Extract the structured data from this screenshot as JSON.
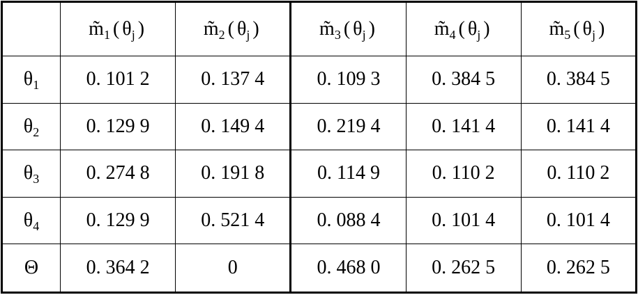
{
  "table": {
    "header": [
      {
        "symbol": "m̃",
        "sub": "1",
        "open": "(",
        "arg": "θ",
        "arg_sub": "j",
        "close": ")"
      },
      {
        "symbol": "m̃",
        "sub": "2",
        "open": "(",
        "arg": "θ",
        "arg_sub": "j",
        "close": ")"
      },
      {
        "symbol": "m̃",
        "sub": "3",
        "open": "(",
        "arg": "θ",
        "arg_sub": "j",
        "close": ")"
      },
      {
        "symbol": "m̃",
        "sub": "4",
        "open": "(",
        "arg": "θ",
        "arg_sub": "j",
        "close": ")"
      },
      {
        "symbol": "m̃",
        "sub": "5",
        "open": "(",
        "arg": "θ",
        "arg_sub": "j",
        "close": ")"
      }
    ],
    "rows": [
      {
        "label": {
          "symbol": "θ",
          "sub": "1"
        },
        "cells": [
          "0. 101 2",
          "0. 137 4",
          "0. 109 3",
          "0. 384 5",
          "0. 384 5"
        ]
      },
      {
        "label": {
          "symbol": "θ",
          "sub": "2"
        },
        "cells": [
          "0. 129 9",
          "0. 149 4",
          "0. 219 4",
          "0. 141 4",
          "0. 141 4"
        ]
      },
      {
        "label": {
          "symbol": "θ",
          "sub": "3"
        },
        "cells": [
          "0. 274 8",
          "0. 191 8",
          "0. 114 9",
          "0. 110 2",
          "0. 110 2"
        ]
      },
      {
        "label": {
          "symbol": "θ",
          "sub": "4"
        },
        "cells": [
          "0. 129 9",
          "0. 521 4",
          "0. 088 4",
          "0. 101 4",
          "0. 101 4"
        ]
      },
      {
        "label": {
          "symbol": "Θ"
        },
        "cells": [
          "0. 364 2",
          "0",
          "0. 468 0",
          "0. 262 5",
          "0. 262 5"
        ]
      }
    ]
  }
}
